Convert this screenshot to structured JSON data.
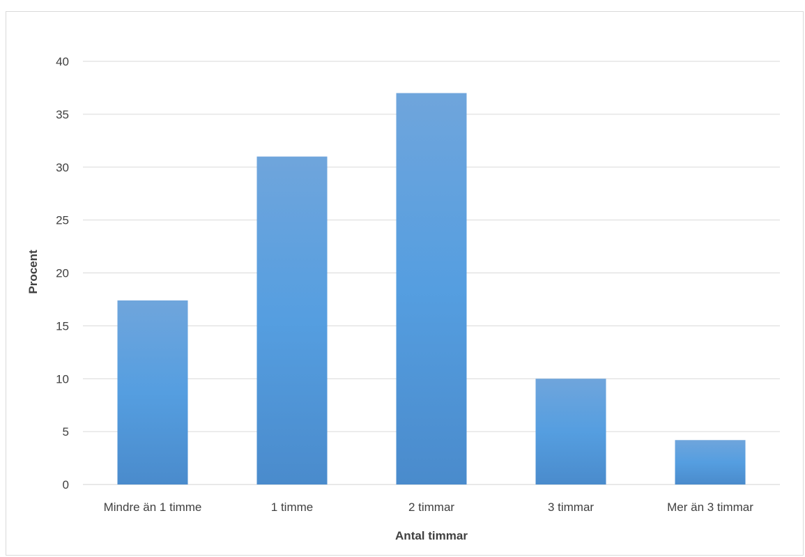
{
  "chart_data": {
    "type": "bar",
    "title": "",
    "xlabel": "Antal timmar",
    "ylabel": "Procent",
    "categories": [
      "Mindre än 1 timme",
      "1 timme",
      "2 timmar",
      "3 timmar",
      "Mer än 3 timmar"
    ],
    "values": [
      17.4,
      31.0,
      37.0,
      10.0,
      4.2
    ],
    "ylim": [
      0,
      40
    ],
    "yticks": [
      0,
      5,
      10,
      15,
      20,
      25,
      30,
      35,
      40
    ],
    "grid": true,
    "legend": "none",
    "colors": {
      "bar_top": "#6fa5dc",
      "bar_mid": "#559ee0",
      "bar_bottom": "#4a8bcc",
      "grid": "#d9d9d9",
      "text": "#404040"
    }
  }
}
